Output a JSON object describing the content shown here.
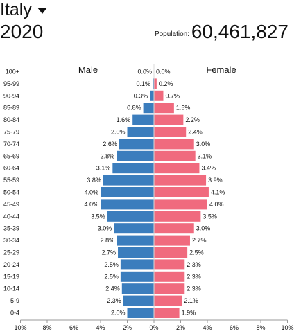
{
  "header": {
    "country": "Italy",
    "year": "2020",
    "population_label": "Population:",
    "population_value": "60,461,827"
  },
  "colors": {
    "male": "#3b7dbd",
    "female": "#f06a7e",
    "axis": "#999999"
  },
  "chart_data": {
    "type": "bar",
    "orientation": "horizontal",
    "subtype": "population-pyramid",
    "categories": [
      "100+",
      "95-99",
      "90-94",
      "85-89",
      "80-84",
      "75-79",
      "70-74",
      "65-69",
      "60-64",
      "55-59",
      "50-54",
      "45-49",
      "40-44",
      "35-39",
      "30-34",
      "25-29",
      "20-24",
      "15-19",
      "10-14",
      "5-9",
      "0-4"
    ],
    "series": [
      {
        "name": "Male",
        "side": "left",
        "values": [
          0.0,
          0.1,
          0.3,
          0.8,
          1.6,
          2.0,
          2.6,
          2.8,
          3.1,
          3.8,
          4.0,
          4.0,
          3.5,
          3.0,
          2.8,
          2.7,
          2.5,
          2.5,
          2.4,
          2.3,
          2.0
        ]
      },
      {
        "name": "Female",
        "side": "right",
        "values": [
          0.0,
          0.2,
          0.7,
          1.5,
          2.2,
          2.4,
          3.0,
          3.1,
          3.4,
          3.9,
          4.1,
          4.0,
          3.5,
          3.0,
          2.7,
          2.5,
          2.3,
          2.3,
          2.3,
          2.1,
          1.9
        ]
      }
    ],
    "xlim": [
      -10,
      10
    ],
    "x_ticks": [
      "10%",
      "8%",
      "6%",
      "4%",
      "2%",
      "0%",
      "2%",
      "4%",
      "6%",
      "8%",
      "10%"
    ],
    "x_tick_values": [
      -10,
      -8,
      -6,
      -4,
      -2,
      0,
      2,
      4,
      6,
      8,
      10
    ],
    "value_suffix": "%",
    "grid": false,
    "legend": "none"
  }
}
